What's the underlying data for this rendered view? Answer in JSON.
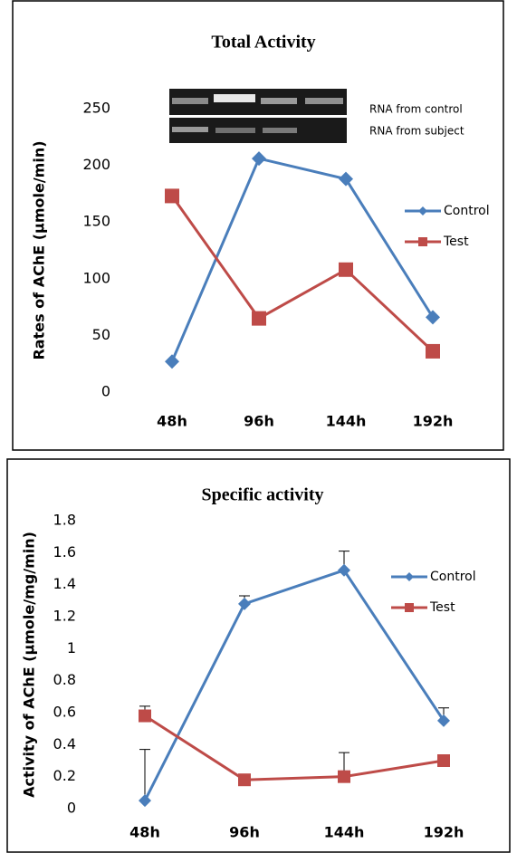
{
  "chart_data": [
    {
      "type": "line",
      "title": "Total Activity",
      "y_label": "Rates of AChE (µmole/min)",
      "categories": [
        "48h",
        "96h",
        "144h",
        "192h"
      ],
      "series": [
        {
          "name": "Control",
          "color": "#4a7ebb",
          "marker": "diamond",
          "values": [
            27,
            206,
            188,
            66
          ]
        },
        {
          "name": "Test",
          "color": "#be4b48",
          "marker": "square",
          "values": [
            173,
            65,
            108,
            36
          ]
        }
      ],
      "ylim": [
        0,
        250
      ],
      "yticks": [
        0,
        50,
        100,
        150,
        200,
        250
      ],
      "annotations": [
        "RNA  from control",
        "RNA  from subject"
      ]
    },
    {
      "type": "line",
      "title": "Specific activity",
      "y_label": "Activity of AChE (µmole/mg/min)",
      "categories": [
        "48h",
        "96h",
        "144h",
        "192h"
      ],
      "series": [
        {
          "name": "Control",
          "color": "#4a7ebb",
          "marker": "diamond",
          "values": [
            0.05,
            1.28,
            1.49,
            0.55
          ],
          "errors": [
            0.32,
            0.05,
            0.12,
            0.08
          ]
        },
        {
          "name": "Test",
          "color": "#be4b48",
          "marker": "square",
          "values": [
            0.58,
            0.18,
            0.2,
            0.3
          ],
          "errors": [
            0.06,
            null,
            0.15,
            null
          ]
        }
      ],
      "ylim": [
        0,
        1.8
      ],
      "yticks": [
        0,
        0.2,
        0.4,
        0.6,
        0.8,
        1,
        1.2,
        1.4,
        1.6,
        1.8
      ]
    }
  ]
}
